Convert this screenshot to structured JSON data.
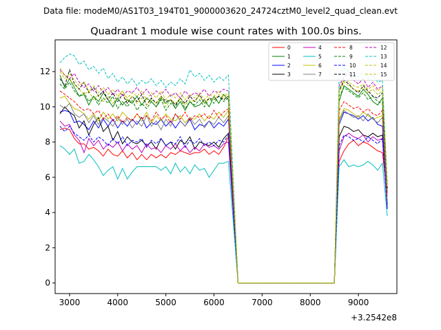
{
  "figure": {
    "header": "Data file: modeM0/AS1T03_194T01_9000003620_24724cztM0_level2_quad_clean.evt"
  },
  "chart_data": {
    "type": "line",
    "title": "Quadrant 1 module wise count rates with 100.0s bins.",
    "xlabel": "",
    "ylabel": "",
    "x_offset_label": "+3.2542e8",
    "xlim": [
      2700,
      9800
    ],
    "ylim": [
      -0.6,
      13.8
    ],
    "x_ticks": [
      3000,
      4000,
      5000,
      6000,
      7000,
      8000,
      9000
    ],
    "y_ticks": [
      0,
      2,
      4,
      6,
      8,
      10,
      12
    ],
    "x_tick_labels": [
      "3000",
      "4000",
      "5000",
      "6000",
      "7000",
      "8000",
      "9000"
    ],
    "y_tick_labels": [
      "0",
      "2",
      "4",
      "6",
      "8",
      "10",
      "12"
    ],
    "grid": false,
    "legend_position": "top-right",
    "legend_ncol": 4,
    "segments_x": {
      "first_start": 2800,
      "first_end": 6300,
      "gap_start": 6500,
      "gap_end": 8500,
      "second_start": 8600,
      "second_end": 9500,
      "step": 100
    },
    "series": [
      {
        "name": "0",
        "color": "#ff0000",
        "dashed": false,
        "first": [
          8.7,
          8.8,
          8.7,
          8.2,
          7.9,
          7.9,
          7.6,
          7.7,
          7.5,
          7.2,
          7.6,
          7.3,
          7.2,
          7.5,
          7.1,
          7.4,
          7.0,
          7.3,
          7.0,
          7.3,
          7.1,
          7.3,
          7.1,
          7.4,
          7.3,
          7.5,
          7.4,
          7.3,
          7.4,
          7.4,
          7.6,
          7.3,
          7.5,
          7.3,
          7.7,
          8.3
        ],
        "second": [
          6.9,
          7.5,
          7.9,
          8.1,
          7.8,
          8.0,
          7.9,
          7.7,
          7.5,
          7.4,
          5.0
        ]
      },
      {
        "name": "1",
        "color": "#008000",
        "dashed": false,
        "first": [
          11.8,
          11.1,
          11.6,
          11.1,
          10.6,
          10.7,
          10.1,
          10.6,
          10.3,
          10.8,
          10.4,
          10.0,
          10.5,
          10.1,
          10.4,
          10.2,
          10.6,
          10.1,
          10.5,
          10.3,
          10.0,
          10.5,
          10.2,
          10.4,
          9.9,
          10.3,
          9.8,
          10.3,
          10.0,
          10.1,
          10.4,
          10.0,
          10.6,
          10.2,
          10.7,
          10.4
        ],
        "second": [
          10.3,
          11.2,
          11.0,
          10.8,
          10.6,
          11.0,
          10.7,
          10.3,
          10.1,
          10.5,
          5.2
        ]
      },
      {
        "name": "2",
        "color": "#0000ff",
        "dashed": false,
        "first": [
          9.7,
          9.8,
          9.7,
          9.1,
          9.2,
          9.0,
          8.7,
          9.2,
          8.8,
          9.3,
          8.9,
          9.3,
          8.8,
          9.2,
          8.9,
          9.3,
          9.0,
          9.4,
          8.8,
          9.1,
          9.0,
          9.3,
          8.9,
          9.2,
          8.8,
          9.2,
          8.9,
          9.3,
          8.7,
          9.0,
          8.9,
          9.2,
          8.8,
          9.1,
          8.9,
          9.3
        ],
        "second": [
          9.0,
          9.7,
          9.6,
          9.5,
          9.3,
          9.5,
          9.2,
          9.4,
          9.0,
          8.9,
          4.5
        ]
      },
      {
        "name": "3",
        "color": "#000000",
        "dashed": false,
        "first": [
          9.6,
          10.0,
          9.7,
          9.5,
          8.8,
          9.2,
          8.4,
          9.0,
          9.4,
          8.6,
          8.9,
          8.1,
          8.6,
          7.9,
          8.3,
          8.0,
          7.9,
          8.1,
          7.8,
          8.0,
          7.6,
          8.2,
          7.8,
          8.0,
          7.6,
          8.1,
          7.9,
          8.3,
          7.6,
          8.0,
          7.9,
          7.8,
          8.0,
          7.7,
          8.2,
          8.5
        ],
        "second": [
          8.3,
          8.9,
          8.8,
          8.6,
          8.7,
          8.4,
          8.3,
          8.5,
          8.3,
          8.4,
          4.3
        ]
      },
      {
        "name": "4",
        "color": "#bf00bf",
        "dashed": false,
        "first": [
          9.2,
          8.9,
          9.0,
          8.4,
          8.1,
          7.4,
          8.2,
          7.8,
          8.1,
          7.6,
          7.9,
          7.7,
          8.0,
          7.5,
          7.9,
          7.6,
          7.8,
          7.4,
          7.9,
          7.6,
          7.7,
          7.4,
          7.8,
          7.6,
          7.9,
          7.5,
          7.8,
          7.4,
          7.7,
          7.5,
          7.9,
          7.7,
          7.8,
          7.6,
          7.9,
          8.0
        ],
        "second": [
          7.5,
          8.3,
          8.5,
          8.3,
          8.2,
          8.4,
          8.0,
          8.3,
          8.1,
          8.2,
          4.2
        ]
      },
      {
        "name": "5",
        "color": "#00bfbf",
        "dashed": false,
        "first": [
          7.8,
          7.6,
          7.3,
          7.6,
          6.8,
          6.9,
          7.3,
          7.0,
          6.6,
          6.1,
          6.4,
          6.6,
          5.9,
          6.5,
          5.9,
          6.3,
          6.6,
          6.6,
          6.6,
          6.6,
          6.6,
          6.4,
          6.6,
          6.2,
          6.8,
          6.3,
          6.6,
          6.2,
          6.7,
          6.4,
          6.5,
          6.0,
          6.4,
          6.8,
          6.8,
          6.9
        ],
        "second": [
          6.6,
          7.0,
          6.6,
          6.7,
          6.6,
          6.7,
          6.9,
          6.7,
          6.4,
          6.8,
          3.8
        ]
      },
      {
        "name": "6",
        "color": "#bfbf00",
        "dashed": false,
        "first": [
          10.5,
          10.6,
          10.2,
          9.9,
          9.8,
          9.6,
          9.3,
          9.6,
          9.2,
          9.7,
          9.3,
          9.6,
          9.2,
          9.7,
          9.4,
          9.2,
          9.6,
          9.2,
          9.7,
          9.1,
          9.5,
          9.2,
          9.6,
          9.3,
          9.2,
          9.5,
          9.1,
          9.4,
          9.3,
          9.6,
          9.2,
          9.5,
          9.3,
          9.7,
          9.4,
          9.8
        ],
        "second": [
          9.3,
          9.9,
          9.8,
          9.6,
          9.4,
          9.7,
          9.5,
          9.3,
          9.4,
          9.5,
          4.9
        ]
      },
      {
        "name": "7",
        "color": "#808080",
        "dashed": false,
        "first": [
          10.1,
          9.9,
          10.2,
          9.6,
          9.4,
          9.6,
          9.1,
          9.5,
          9.0,
          9.4,
          9.2,
          8.9,
          9.4,
          9.0,
          9.3,
          8.8,
          9.2,
          8.9,
          9.5,
          8.9,
          9.2,
          8.7,
          9.3,
          8.9,
          9.6,
          9.2,
          8.9,
          9.4,
          9.0,
          9.3,
          8.8,
          9.2,
          9.0,
          9.4,
          9.1,
          9.5
        ],
        "second": [
          9.2,
          9.8,
          9.6,
          9.4,
          9.5,
          9.2,
          9.6,
          9.3,
          9.1,
          9.4,
          4.6
        ]
      },
      {
        "name": "8",
        "color": "#ff0000",
        "dashed": true,
        "first": [
          10.9,
          10.7,
          10.5,
          10.3,
          10.0,
          9.8,
          9.9,
          9.6,
          9.8,
          9.3,
          9.6,
          9.2,
          9.5,
          9.1,
          9.4,
          9.2,
          9.6,
          9.3,
          9.5,
          9.2,
          9.7,
          9.3,
          9.5,
          9.1,
          9.6,
          9.3,
          9.7,
          9.2,
          9.5,
          9.4,
          9.6,
          9.3,
          9.8,
          9.4,
          9.7,
          9.9
        ],
        "second": [
          9.8,
          10.3,
          10.1,
          9.9,
          10.0,
          9.7,
          9.9,
          9.6,
          9.5,
          9.8,
          5.1
        ]
      },
      {
        "name": "9",
        "color": "#008000",
        "dashed": true,
        "first": [
          11.3,
          11.0,
          11.4,
          10.9,
          10.6,
          10.8,
          10.3,
          10.6,
          10.1,
          10.5,
          10.2,
          10.6,
          9.9,
          10.3,
          10.0,
          10.4,
          9.8,
          10.2,
          9.9,
          10.3,
          10.0,
          10.4,
          9.8,
          10.2,
          10.0,
          10.5,
          9.9,
          10.3,
          10.1,
          10.4,
          10.0,
          10.5,
          10.2,
          10.6,
          10.3,
          10.5
        ],
        "second": [
          10.6,
          11.1,
          10.9,
          10.7,
          10.5,
          10.8,
          10.4,
          10.6,
          10.3,
          10.2,
          5.3
        ]
      },
      {
        "name": "10",
        "color": "#0000ff",
        "dashed": true,
        "first": [
          8.9,
          8.6,
          8.9,
          8.5,
          8.3,
          8.1,
          8.4,
          8.0,
          8.3,
          8.1,
          7.8,
          8.2,
          7.9,
          8.3,
          7.8,
          8.1,
          8.0,
          8.2,
          7.7,
          8.1,
          7.9,
          8.2,
          7.8,
          8.0,
          7.9,
          8.3,
          7.7,
          8.1,
          7.9,
          8.2,
          7.8,
          8.0,
          7.8,
          8.1,
          8.0,
          8.4
        ],
        "second": [
          7.8,
          8.4,
          8.3,
          8.1,
          8.2,
          8.0,
          8.3,
          8.1,
          7.9,
          8.2,
          4.2
        ]
      },
      {
        "name": "11",
        "color": "#000000",
        "dashed": true,
        "first": [
          11.6,
          11.2,
          12.1,
          11.3,
          11.0,
          11.4,
          10.8,
          11.1,
          10.6,
          10.9,
          10.4,
          10.8,
          10.3,
          10.7,
          10.2,
          10.6,
          10.3,
          10.7,
          10.1,
          10.5,
          10.2,
          10.6,
          10.3,
          10.4,
          10.1,
          10.5,
          10.2,
          10.6,
          10.3,
          10.7,
          10.2,
          10.5,
          10.4,
          10.6,
          10.4,
          10.6
        ],
        "second": [
          10.9,
          11.5,
          11.3,
          11.0,
          10.8,
          11.2,
          10.9,
          10.6,
          10.5,
          10.8,
          5.4
        ]
      },
      {
        "name": "12",
        "color": "#bf00bf",
        "dashed": true,
        "first": [
          12.1,
          11.8,
          11.6,
          11.9,
          11.4,
          11.1,
          11.3,
          10.9,
          11.2,
          10.8,
          11.1,
          10.7,
          11.0,
          10.6,
          10.9,
          10.8,
          11.1,
          10.7,
          11.0,
          10.6,
          10.9,
          10.7,
          11.0,
          10.6,
          10.8,
          10.5,
          10.9,
          10.6,
          10.8,
          10.7,
          11.0,
          10.6,
          10.9,
          10.8,
          11.0,
          10.9
        ],
        "second": [
          11.2,
          11.7,
          11.9,
          11.5,
          11.3,
          11.6,
          11.1,
          11.4,
          11.0,
          11.2,
          5.6
        ]
      },
      {
        "name": "13",
        "color": "#00bfbf",
        "dashed": true,
        "first": [
          12.5,
          12.8,
          13.0,
          12.9,
          12.4,
          12.6,
          12.1,
          12.3,
          11.9,
          12.2,
          11.6,
          11.9,
          11.4,
          11.7,
          11.3,
          11.6,
          11.2,
          11.5,
          11.3,
          11.6,
          11.2,
          11.5,
          11.1,
          11.4,
          11.2,
          11.6,
          11.3,
          12.1,
          11.7,
          11.9,
          11.5,
          11.8,
          11.4,
          11.7,
          11.5,
          11.8
        ],
        "second": [
          11.7,
          12.2,
          12.0,
          11.8,
          11.7,
          12.0,
          11.6,
          11.8,
          11.4,
          11.5,
          5.7
        ]
      },
      {
        "name": "14",
        "color": "#bfbf00",
        "dashed": true,
        "first": [
          12.2,
          11.8,
          11.5,
          11.3,
          11.0,
          10.7,
          10.9,
          10.4,
          10.7,
          10.3,
          10.6,
          10.2,
          10.5,
          10.9,
          10.3,
          10.6,
          10.2,
          10.5,
          10.1,
          10.4,
          10.2,
          10.6,
          10.0,
          10.4,
          10.2,
          10.5,
          10.1,
          10.4,
          10.3,
          10.6,
          10.2,
          10.5,
          10.4,
          10.7,
          10.5,
          10.7
        ],
        "second": [
          10.8,
          11.4,
          11.2,
          11.0,
          10.9,
          11.1,
          10.8,
          11.0,
          10.7,
          10.9,
          5.5
        ]
      },
      {
        "name": "15",
        "color": "#bfbf00",
        "dashed": true,
        "first": [
          12.0,
          11.6,
          11.9,
          11.5,
          11.2,
          11.4,
          10.9,
          11.2,
          10.8,
          11.1,
          10.7,
          11.0,
          10.6,
          10.9,
          10.5,
          10.8,
          10.6,
          10.9,
          10.4,
          10.8,
          10.5,
          10.9,
          10.4,
          10.7,
          10.5,
          10.8,
          10.4,
          10.7,
          10.5,
          10.8,
          10.4,
          10.7,
          10.6,
          10.9,
          10.6,
          10.8
        ],
        "second": [
          11.0,
          11.6,
          11.4,
          11.2,
          11.1,
          11.3,
          11.0,
          11.2,
          10.9,
          11.1,
          5.5
        ]
      }
    ]
  }
}
